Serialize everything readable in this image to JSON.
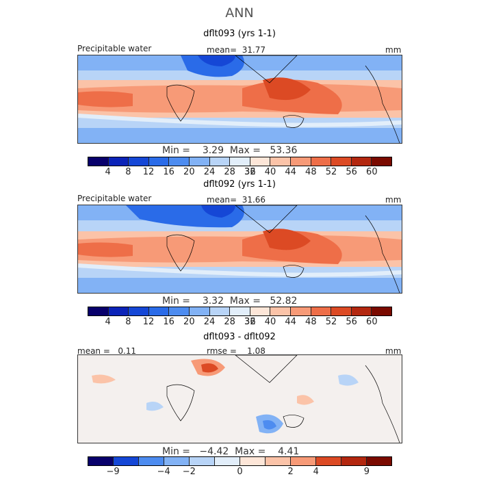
{
  "figure": {
    "title": "ANN"
  },
  "panels": [
    {
      "title": "dflt093 (yrs 1-1)",
      "variable": "Precipitable water",
      "stat1": "mean=  31.77",
      "units": "mm",
      "minmax": "Min =    3.29  Max =   53.36",
      "cbar_ticks": [
        "4",
        "8",
        "12",
        "16",
        "20",
        "24",
        "28",
        "32",
        "36",
        "40",
        "44",
        "48",
        "52",
        "56",
        "60"
      ]
    },
    {
      "title": "dflt092 (yrs 1-1)",
      "variable": "Precipitable water",
      "stat1": "mean=  31.66",
      "units": "mm",
      "minmax": "Min =    3.32  Max =   52.82",
      "cbar_ticks": [
        "4",
        "8",
        "12",
        "16",
        "20",
        "24",
        "28",
        "32",
        "36",
        "40",
        "44",
        "48",
        "52",
        "56",
        "60"
      ]
    },
    {
      "title": "dflt093 - dflt092",
      "stat0": "mean =   0.11",
      "stat1": "rmse =    1.08",
      "units": "mm",
      "minmax": "Min =   −4.42  Max =    4.41",
      "cbar_ticks": [
        "−9",
        "−4",
        "−2",
        "0",
        "2",
        "4",
        "9"
      ]
    }
  ],
  "colors": {
    "abs_scale": [
      "#08006b",
      "#0b23b8",
      "#1547d6",
      "#2a6be8",
      "#4d8cf0",
      "#82b2f5",
      "#b8d4f7",
      "#e2eefa",
      "#fde6d8",
      "#fbc3a8",
      "#f79a77",
      "#ee6e48",
      "#dc4a24",
      "#b3270f",
      "#7a0a00"
    ],
    "diff_scale": [
      "#08006b",
      "#1547d6",
      "#4d8cf0",
      "#82b2f5",
      "#b8d4f7",
      "#e2eefa",
      "#fde6d8",
      "#fbc3a8",
      "#f79a77",
      "#dc4a24",
      "#b3270f",
      "#7a0a00"
    ]
  }
}
